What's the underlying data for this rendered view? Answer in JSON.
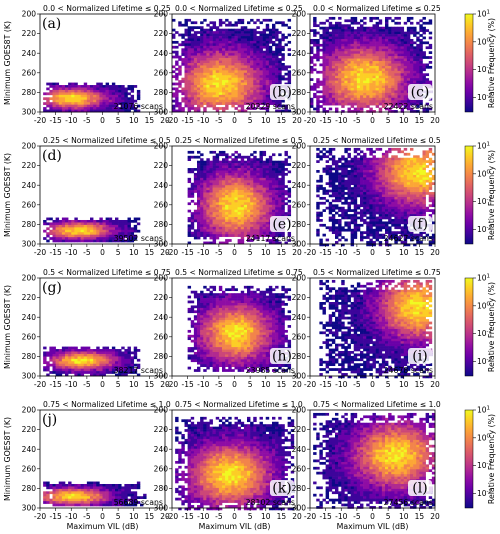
{
  "colormap": [
    "#0d0887",
    "#3d049b",
    "#6a00a8",
    "#8f0da4",
    "#b12a90",
    "#cc4778",
    "#e16462",
    "#f2844b",
    "#fca636",
    "#fcce25",
    "#f0f921"
  ],
  "chart_data": {
    "type": "heatmap",
    "xlabel": "Maximum VIL (dB)",
    "ylabel": "Minimum GOES8T (K)",
    "x_ticks": [
      "-20",
      "-15",
      "-10",
      "-5",
      "0",
      "5",
      "10",
      "15",
      "20"
    ],
    "y_ticks": [
      "200",
      "220",
      "240",
      "260",
      "280",
      "300"
    ],
    "xlim": [
      -20,
      20
    ],
    "ylim": [
      300,
      200
    ],
    "colorbar": {
      "label": "Relative Frequency (%)",
      "scale": "log",
      "ticks": [
        "10^1",
        "10^0",
        "10^-1",
        "10^-2"
      ],
      "range": [
        0.003,
        10
      ]
    },
    "rows": [
      {
        "title": "0.0 < Normalized Lifetime ≤ 0.25",
        "panels": [
          {
            "letter": "(a)",
            "scans": "21076 scans"
          },
          {
            "letter": "(b)",
            "scans": "20229 scans"
          },
          {
            "letter": "(c)",
            "scans": "22422 scans"
          }
        ]
      },
      {
        "title": "0.25 < Normalized Lifetime ≤ 0.5",
        "panels": [
          {
            "letter": "(d)",
            "scans": "39502 scans"
          },
          {
            "letter": "(e)",
            "scans": "24117 scans"
          },
          {
            "letter": "(f)",
            "scans": "24627 scans"
          }
        ]
      },
      {
        "title": "0.5 < Normalized Lifetime ≤ 0.75",
        "panels": [
          {
            "letter": "(g)",
            "scans": "38217 scans"
          },
          {
            "letter": "(h)",
            "scans": "23985 scans"
          },
          {
            "letter": "(i)",
            "scans": "24678 scans"
          }
        ]
      },
      {
        "title": "0.75 < Normalized Lifetime ≤ 1.0",
        "panels": [
          {
            "letter": "(j)",
            "scans": "56689 scans"
          },
          {
            "letter": "(k)",
            "scans": "28102 scans"
          },
          {
            "letter": "(l)",
            "scans": "27456 scans"
          }
        ]
      }
    ],
    "distributions": [
      {
        "panel": "(a)",
        "x_range": [
          -19,
          12
        ],
        "y_range": [
          270,
          300
        ],
        "peak": [
          -10,
          285
        ]
      },
      {
        "panel": "(b)",
        "x_range": [
          -20,
          18
        ],
        "y_range": [
          205,
          300
        ],
        "peak": [
          -5,
          270
        ]
      },
      {
        "panel": "(c)",
        "x_range": [
          -20,
          19
        ],
        "y_range": [
          203,
          300
        ],
        "peak": [
          -3,
          265
        ]
      },
      {
        "panel": "(d)",
        "x_range": [
          -19,
          12
        ],
        "y_range": [
          273,
          298
        ],
        "peak": [
          -8,
          285
        ]
      },
      {
        "panel": "(e)",
        "x_range": [
          -15,
          18
        ],
        "y_range": [
          205,
          300
        ],
        "peak": [
          0,
          260
        ]
      },
      {
        "panel": "(f)",
        "x_range": [
          -18,
          20
        ],
        "y_range": [
          202,
          300
        ],
        "peak": [
          14,
          225
        ]
      },
      {
        "panel": "(g)",
        "x_range": [
          -19,
          12
        ],
        "y_range": [
          270,
          298
        ],
        "peak": [
          -7,
          283
        ]
      },
      {
        "panel": "(h)",
        "x_range": [
          -15,
          18
        ],
        "y_range": [
          208,
          295
        ],
        "peak": [
          0,
          255
        ]
      },
      {
        "panel": "(i)",
        "x_range": [
          -17,
          19
        ],
        "y_range": [
          202,
          300
        ],
        "peak": [
          14,
          228
        ]
      },
      {
        "panel": "(j)",
        "x_range": [
          -19,
          14
        ],
        "y_range": [
          273,
          298
        ],
        "peak": [
          -10,
          287
        ]
      },
      {
        "panel": "(k)",
        "x_range": [
          -19,
          19
        ],
        "y_range": [
          207,
          300
        ],
        "peak": [
          -2,
          265
        ]
      },
      {
        "panel": "(l)",
        "x_range": [
          -19,
          20
        ],
        "y_range": [
          203,
          300
        ],
        "peak": [
          7,
          245
        ]
      }
    ]
  }
}
